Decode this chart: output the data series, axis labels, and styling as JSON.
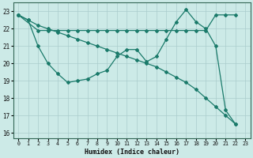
{
  "xlabel": "Humidex (Indice chaleur)",
  "bg_color": "#cceae7",
  "grid_color": "#aacccc",
  "line_color": "#1a7a6a",
  "xlim": [
    -0.5,
    23.5
  ],
  "ylim": [
    15.7,
    23.5
  ],
  "yticks": [
    16,
    17,
    18,
    19,
    20,
    21,
    22,
    23
  ],
  "xticks": [
    0,
    1,
    2,
    3,
    4,
    5,
    6,
    7,
    8,
    9,
    10,
    11,
    12,
    13,
    14,
    15,
    16,
    17,
    18,
    19,
    20,
    21,
    22,
    23
  ],
  "line1_x": [
    0,
    1,
    2,
    3,
    4,
    5,
    6,
    7,
    8,
    9,
    10,
    11,
    12,
    13,
    14,
    15,
    16,
    17,
    18,
    19,
    20,
    21,
    22
  ],
  "line1_y": [
    22.8,
    22.5,
    21.0,
    20.0,
    19.4,
    18.9,
    19.0,
    19.1,
    19.4,
    19.6,
    20.4,
    20.8,
    20.8,
    20.1,
    20.4,
    21.4,
    22.4,
    23.1,
    22.4,
    22.0,
    21.0,
    17.3,
    16.5
  ],
  "line2_x": [
    0,
    2,
    3,
    4,
    5,
    6,
    7,
    8,
    9,
    10,
    11,
    12,
    13,
    14,
    15,
    16,
    17,
    18,
    19,
    20,
    21,
    22
  ],
  "line2_y": [
    22.8,
    21.9,
    21.9,
    21.9,
    21.9,
    21.9,
    21.9,
    21.9,
    21.9,
    21.9,
    21.9,
    21.9,
    21.9,
    21.9,
    21.9,
    21.9,
    21.9,
    21.9,
    21.9,
    22.8,
    22.8,
    22.8
  ],
  "line3_x": [
    0,
    1,
    2,
    3,
    4,
    5,
    6,
    7,
    8,
    9,
    10,
    11,
    12,
    13,
    14,
    15,
    16,
    17,
    18,
    19,
    20,
    21,
    22
  ],
  "line3_y": [
    22.8,
    22.5,
    22.2,
    22.0,
    21.8,
    21.6,
    21.4,
    21.2,
    21.0,
    20.8,
    20.6,
    20.4,
    20.2,
    20.0,
    19.8,
    19.5,
    19.2,
    18.9,
    18.5,
    18.0,
    17.5,
    17.0,
    16.5
  ]
}
